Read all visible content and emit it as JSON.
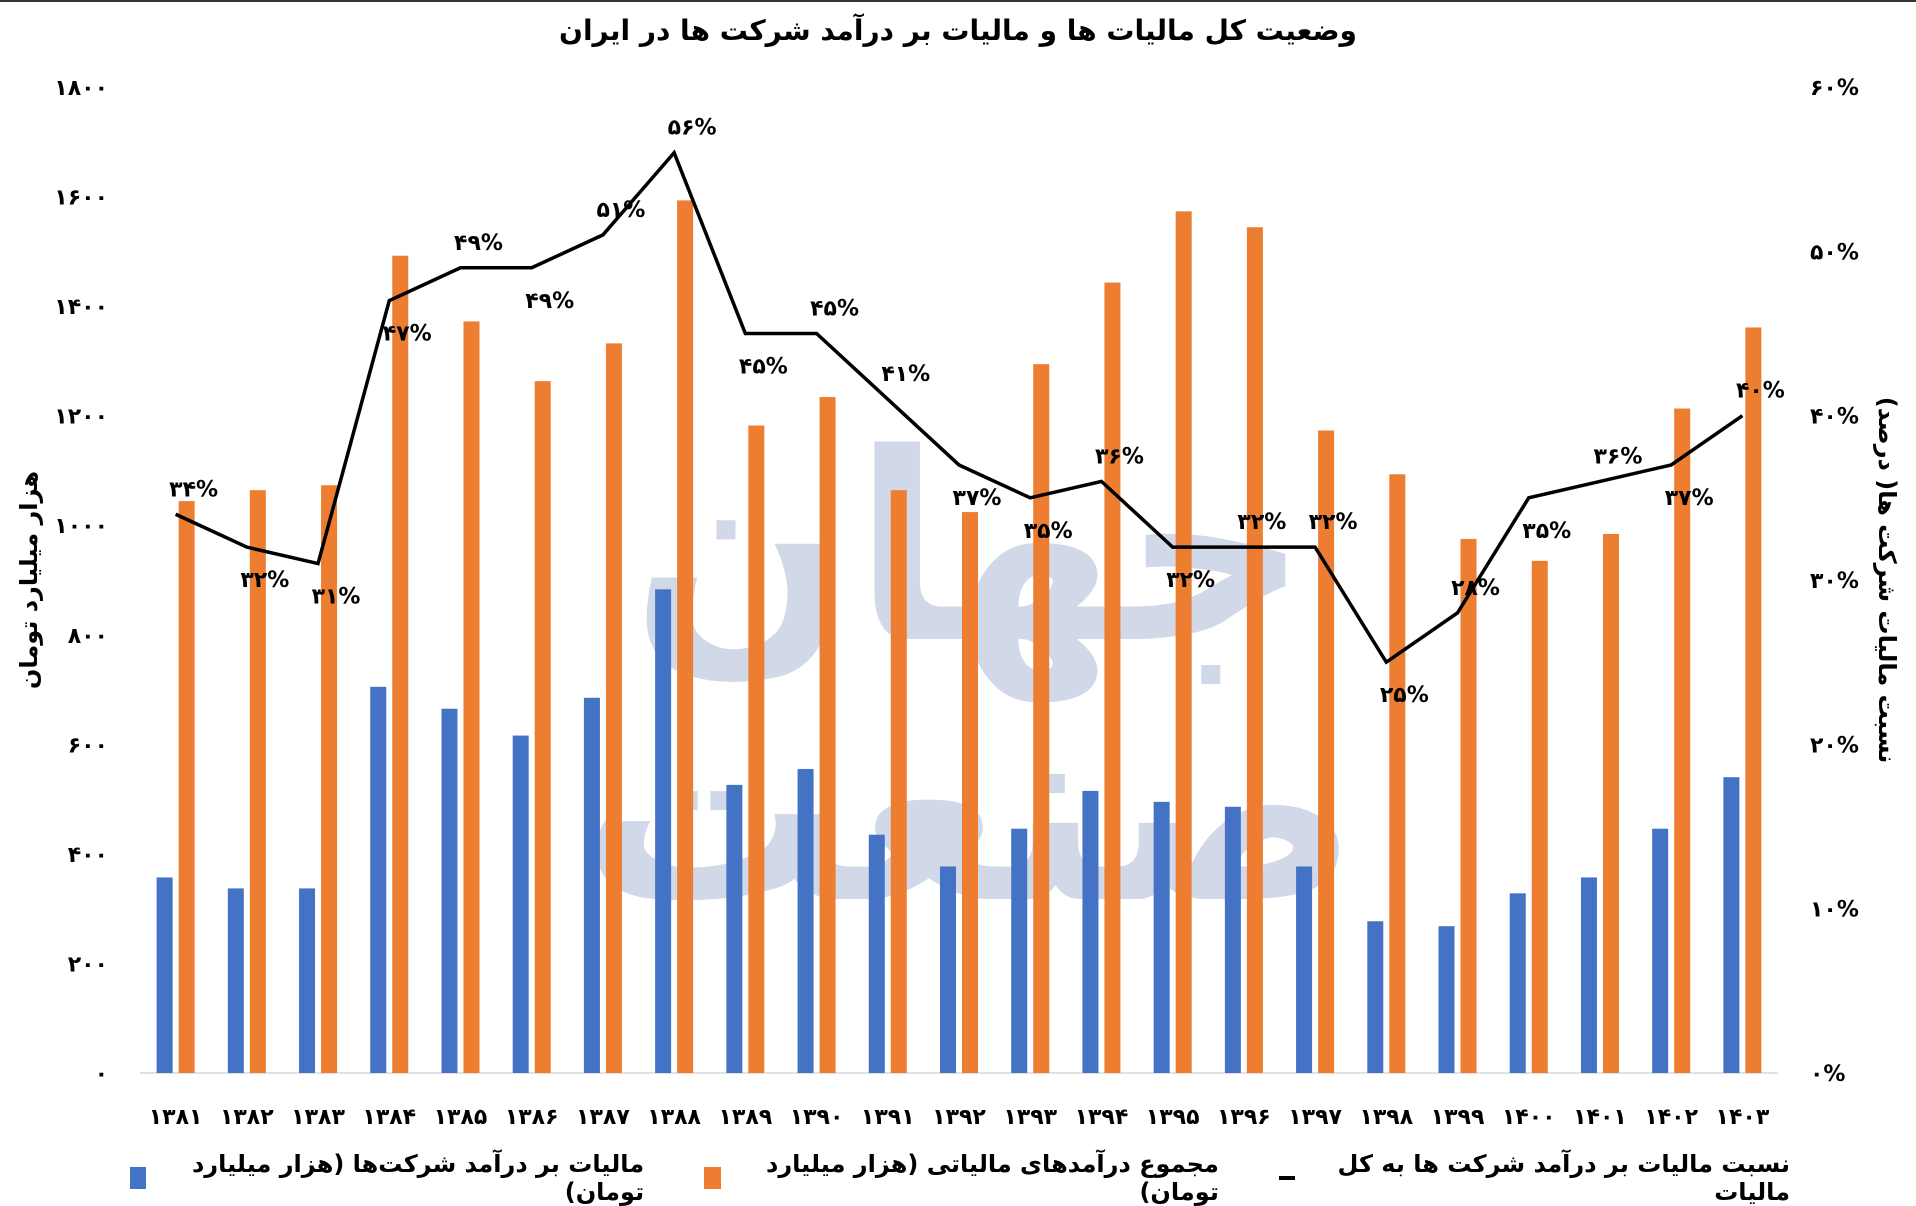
{
  "watermark": "جهان صنعت",
  "chart_data": {
    "type": "bar",
    "title": "وضعیت کل مالیات ها و مالیات بر درآمد شرکت ها در ایران",
    "ylabel": "هزار میلیارد تومان",
    "y2label": "نسبت مالیات شرکت ها( درصد)",
    "ylim": [
      0,
      1800
    ],
    "y2lim": [
      0,
      60
    ],
    "yticks": [
      "۰",
      "۲۰۰",
      "۴۰۰",
      "۶۰۰",
      "۸۰۰",
      "۱۰۰۰",
      "۱۲۰۰",
      "۱۴۰۰",
      "۱۶۰۰",
      "۱۸۰۰"
    ],
    "y2ticks": [
      "۰%",
      "۱۰%",
      "۲۰%",
      "۳۰%",
      "۴۰%",
      "۵۰%",
      "۶۰%"
    ],
    "grid": false,
    "legend_position": "bottom",
    "categories": [
      "۱۳۸۱",
      "۱۳۸۲",
      "۱۳۸۳",
      "۱۳۸۴",
      "۱۳۸۵",
      "۱۳۸۶",
      "۱۳۸۷",
      "۱۳۸۸",
      "۱۳۸۹",
      "۱۳۹۰",
      "۱۳۹۱",
      "۱۳۹۲",
      "۱۳۹۳",
      "۱۳۹۴",
      "۱۳۹۵",
      "۱۳۹۶",
      "۱۳۹۷",
      "۱۳۹۸",
      "۱۳۹۹",
      "۱۴۰۰",
      "۱۴۰۱",
      "۱۴۰۲",
      "۱۴۰۳"
    ],
    "series": [
      {
        "name": "مالیات بر درآمد شرکت‌ها (هزار میلیارد تومان)",
        "type": "bar",
        "axis": "left",
        "color": "#4472c4",
        "values": [
          357,
          337,
          337,
          705,
          665,
          616,
          685,
          883,
          526,
          555,
          435,
          377,
          446,
          515,
          495,
          486,
          377,
          277,
          268,
          328,
          357,
          446,
          540
        ]
      },
      {
        "name": "مجموع درآمدهای مالیاتی (هزار میلیارد تومان)",
        "type": "bar",
        "axis": "left",
        "color": "#ed7d31",
        "values": [
          1044,
          1064,
          1073,
          1492,
          1372,
          1263,
          1332,
          1593,
          1182,
          1234,
          1064,
          1024,
          1294,
          1443,
          1573,
          1544,
          1173,
          1093,
          975,
          935,
          984,
          1213,
          1361
        ]
      },
      {
        "name": "نسبت مالیات بر درآمد شرکت ها به کل مالیات",
        "type": "line",
        "axis": "right",
        "color": "#000000",
        "values": [
          34,
          32,
          31,
          47,
          49,
          49,
          51,
          56,
          45,
          45,
          41,
          37,
          35,
          36,
          32,
          32,
          32,
          25,
          28,
          35,
          36,
          37,
          40
        ],
        "labels": [
          "۳۴%",
          "۳۲%",
          "۳۱%",
          "۴۷%",
          "۴۹%",
          "۴۹%",
          "۵۱%",
          "۵۶%",
          "۴۵%",
          "۴۵%",
          "۴۱%",
          "۳۷%",
          "۳۵%",
          "۳۶%",
          "۳۲%",
          "۳۲%",
          "۳۲%",
          "۲۵%",
          "۲۸%",
          "۳۵%",
          "۳۶%",
          "۳۷%",
          "۴۰%"
        ]
      }
    ]
  }
}
